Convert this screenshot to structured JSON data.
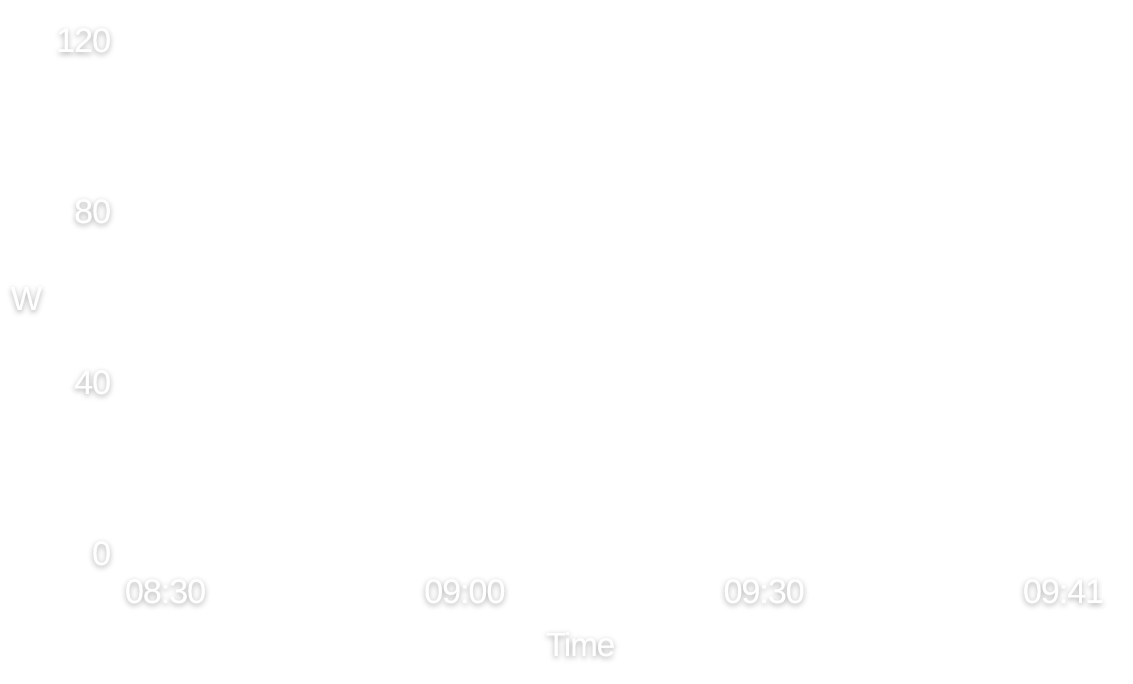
{
  "chart_data": {
    "type": "line",
    "title": "",
    "xlabel": "Time",
    "ylabel": "W",
    "x_ticks": [
      "08:30",
      "09:00",
      "09:30",
      "09:41"
    ],
    "y_ticks": [
      0,
      40,
      80,
      120
    ],
    "ylim": [
      0,
      120
    ],
    "grid": false,
    "series": []
  }
}
